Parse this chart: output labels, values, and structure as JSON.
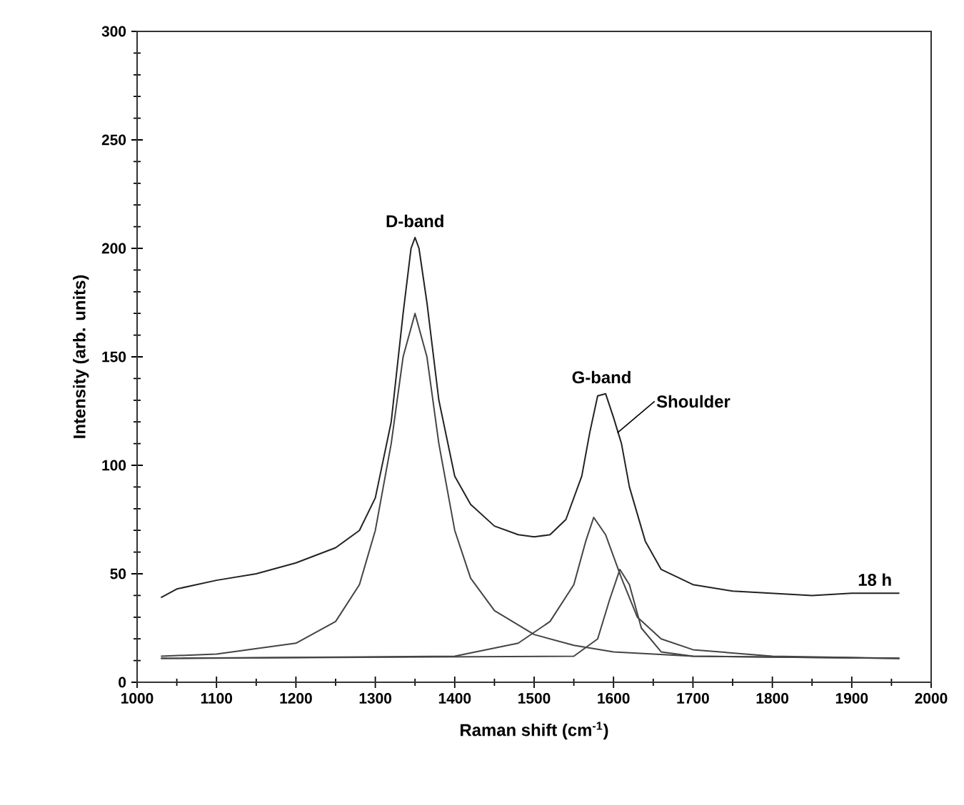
{
  "chart_data": {
    "type": "line",
    "xlabel": "Raman shift (cm$^{-1}$)",
    "ylabel": "Intensity (arb. units)",
    "xlim": [
      1000,
      2000
    ],
    "ylim": [
      0,
      300
    ],
    "xticks": [
      1000,
      1100,
      1200,
      1300,
      1400,
      1500,
      1600,
      1700,
      1800,
      1900,
      2000
    ],
    "yticks": [
      0,
      50,
      100,
      150,
      200,
      250,
      300
    ],
    "grid": false,
    "marker": "none",
    "line_style": "solid",
    "series": [
      {
        "color": "#222222",
        "x": [
          1030,
          1050,
          1100,
          1150,
          1200,
          1250,
          1280,
          1300,
          1320,
          1335,
          1345,
          1350,
          1355,
          1365,
          1380,
          1400,
          1420,
          1450,
          1480,
          1500,
          1520,
          1540,
          1560,
          1570,
          1580,
          1590,
          1600,
          1610,
          1620,
          1640,
          1660,
          1700,
          1750,
          1800,
          1850,
          1900,
          1950,
          1960
        ],
        "values": [
          39,
          43,
          47,
          50,
          55,
          62,
          70,
          85,
          120,
          170,
          200,
          205,
          200,
          175,
          130,
          95,
          82,
          72,
          68,
          67,
          68,
          75,
          95,
          115,
          132,
          133,
          122,
          110,
          90,
          65,
          52,
          45,
          42,
          41,
          40,
          41,
          41,
          41
        ]
      },
      {
        "color": "#444444",
        "x": [
          1030,
          1100,
          1200,
          1250,
          1280,
          1300,
          1320,
          1335,
          1350,
          1365,
          1380,
          1400,
          1420,
          1450,
          1500,
          1550,
          1600,
          1700,
          1960
        ],
        "values": [
          12,
          13,
          18,
          28,
          45,
          70,
          110,
          150,
          170,
          150,
          110,
          70,
          48,
          33,
          22,
          17,
          14,
          12,
          11
        ]
      },
      {
        "color": "#444444",
        "x": [
          1030,
          1400,
          1480,
          1520,
          1550,
          1565,
          1575,
          1590,
          1610,
          1630,
          1660,
          1700,
          1800,
          1960
        ],
        "values": [
          11,
          12,
          18,
          28,
          45,
          65,
          76,
          68,
          48,
          30,
          20,
          15,
          12,
          11
        ]
      },
      {
        "color": "#444444",
        "x": [
          1030,
          1550,
          1580,
          1595,
          1608,
          1620,
          1635,
          1660,
          1700,
          1960
        ],
        "values": [
          11,
          12,
          20,
          38,
          52,
          45,
          25,
          14,
          12,
          11
        ]
      }
    ],
    "annotations": [
      {
        "text": "D-band",
        "x": 1350,
        "y": 205
      },
      {
        "text": "G-band",
        "x": 1585,
        "y": 133
      },
      {
        "text": "Shoulder",
        "x": 1605,
        "y": 115
      },
      {
        "text": "18 h",
        "x": 1960,
        "y": 41
      }
    ]
  }
}
